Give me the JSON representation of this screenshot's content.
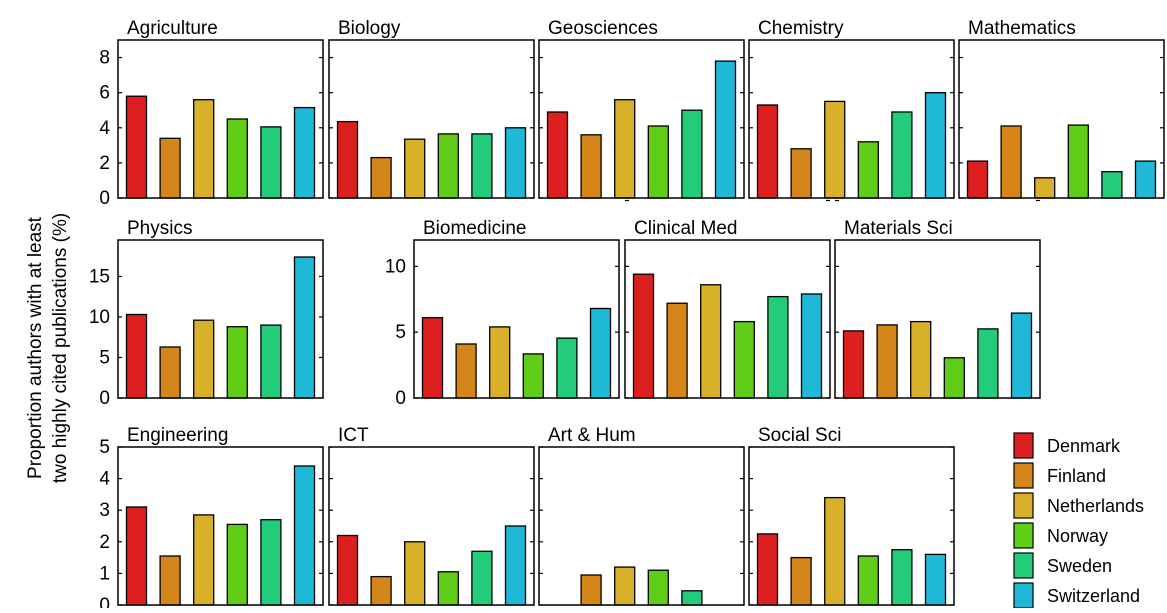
{
  "figure": {
    "ylabel_line1": "Proportion authors with at least",
    "ylabel_line2": "two highly cited publications (%)"
  },
  "legend": {
    "entries": [
      {
        "label": "Denmark",
        "color": "#dc1f1f"
      },
      {
        "label": "Finland",
        "color": "#d4861a"
      },
      {
        "label": "Netherlands",
        "color": "#d9b02a"
      },
      {
        "label": "Norway",
        "color": "#62cd18"
      },
      {
        "label": "Sweden",
        "color": "#22cc7a"
      },
      {
        "label": "Switzerland",
        "color": "#1fb8d6"
      }
    ]
  },
  "chart_data": [
    {
      "type": "bar",
      "title": "Agriculture",
      "ylim": [
        0,
        9
      ],
      "yticks": [
        "0",
        "2",
        "4",
        "6",
        "8"
      ],
      "categories": [
        "Denmark",
        "Finland",
        "Netherlands",
        "Norway",
        "Sweden",
        "Switzerland"
      ],
      "values": [
        5.8,
        3.4,
        5.6,
        4.5,
        4.05,
        5.15
      ]
    },
    {
      "type": "bar",
      "title": "Biology",
      "ylim": [
        0,
        9
      ],
      "yticks": [],
      "categories": [
        "Denmark",
        "Finland",
        "Netherlands",
        "Norway",
        "Sweden",
        "Switzerland"
      ],
      "values": [
        4.35,
        2.3,
        3.35,
        3.65,
        3.65,
        4.0
      ]
    },
    {
      "type": "bar",
      "title": "Geosciences",
      "ylim": [
        0,
        9
      ],
      "yticks": [],
      "categories": [
        "Denmark",
        "Finland",
        "Netherlands",
        "Norway",
        "Sweden",
        "Switzerland"
      ],
      "values": [
        4.9,
        3.6,
        5.6,
        4.1,
        5.0,
        7.8
      ]
    },
    {
      "type": "bar",
      "title": "Chemistry",
      "ylim": [
        0,
        9
      ],
      "yticks": [],
      "categories": [
        "Denmark",
        "Finland",
        "Netherlands",
        "Norway",
        "Sweden",
        "Switzerland"
      ],
      "values": [
        5.3,
        2.8,
        5.5,
        3.2,
        4.9,
        6.0
      ]
    },
    {
      "type": "bar",
      "title": "Mathematics",
      "ylim": [
        0,
        9
      ],
      "yticks": [],
      "categories": [
        "Denmark",
        "Finland",
        "Netherlands",
        "Norway",
        "Sweden",
        "Switzerland"
      ],
      "values": [
        2.1,
        4.1,
        1.15,
        4.15,
        1.5,
        2.1
      ]
    },
    {
      "type": "bar",
      "title": "Physics",
      "ylim": [
        0,
        19.5
      ],
      "yticks": [
        "0",
        "5",
        "10",
        "15"
      ],
      "categories": [
        "Denmark",
        "Finland",
        "Netherlands",
        "Norway",
        "Sweden",
        "Switzerland"
      ],
      "values": [
        10.3,
        6.3,
        9.6,
        8.8,
        9.0,
        17.4
      ]
    },
    {
      "type": "bar",
      "title": "Biomedicine",
      "ylim": [
        0,
        12
      ],
      "yticks": [
        "0",
        "5",
        "10"
      ],
      "categories": [
        "Denmark",
        "Finland",
        "Netherlands",
        "Norway",
        "Sweden",
        "Switzerland"
      ],
      "values": [
        6.1,
        4.1,
        5.4,
        3.35,
        4.55,
        6.8
      ]
    },
    {
      "type": "bar",
      "title": "Clinical Med",
      "ylim": [
        0,
        12
      ],
      "yticks": [],
      "categories": [
        "Denmark",
        "Finland",
        "Netherlands",
        "Norway",
        "Sweden",
        "Switzerland"
      ],
      "values": [
        9.4,
        7.2,
        8.6,
        5.8,
        7.7,
        7.9
      ]
    },
    {
      "type": "bar",
      "title": "Materials Sci",
      "ylim": [
        0,
        12
      ],
      "yticks": [],
      "categories": [
        "Denmark",
        "Finland",
        "Netherlands",
        "Norway",
        "Sweden",
        "Switzerland"
      ],
      "values": [
        5.1,
        5.55,
        5.8,
        3.05,
        5.25,
        6.45
      ]
    },
    {
      "type": "bar",
      "title": "Engineering",
      "ylim": [
        0,
        5
      ],
      "yticks": [
        "0",
        "1",
        "2",
        "3",
        "4",
        "5"
      ],
      "categories": [
        "Denmark",
        "Finland",
        "Netherlands",
        "Norway",
        "Sweden",
        "Switzerland"
      ],
      "values": [
        3.1,
        1.55,
        2.85,
        2.55,
        2.7,
        4.4
      ]
    },
    {
      "type": "bar",
      "title": "ICT",
      "ylim": [
        0,
        5
      ],
      "yticks": [],
      "categories": [
        "Denmark",
        "Finland",
        "Netherlands",
        "Norway",
        "Sweden",
        "Switzerland"
      ],
      "values": [
        2.2,
        0.9,
        2.0,
        1.05,
        1.7,
        2.5
      ]
    },
    {
      "type": "bar",
      "title": "Art & Hum",
      "ylim": [
        0,
        5
      ],
      "yticks": [],
      "categories": [
        "Denmark",
        "Finland",
        "Netherlands",
        "Norway",
        "Sweden",
        "Switzerland"
      ],
      "values": [
        0,
        0.95,
        1.2,
        1.1,
        0.45,
        0
      ]
    },
    {
      "type": "bar",
      "title": "Social Sci",
      "ylim": [
        0,
        5
      ],
      "yticks": [],
      "categories": [
        "Denmark",
        "Finland",
        "Netherlands",
        "Norway",
        "Sweden",
        "Switzerland"
      ],
      "values": [
        2.25,
        1.5,
        3.4,
        1.55,
        1.75,
        1.6
      ]
    }
  ]
}
